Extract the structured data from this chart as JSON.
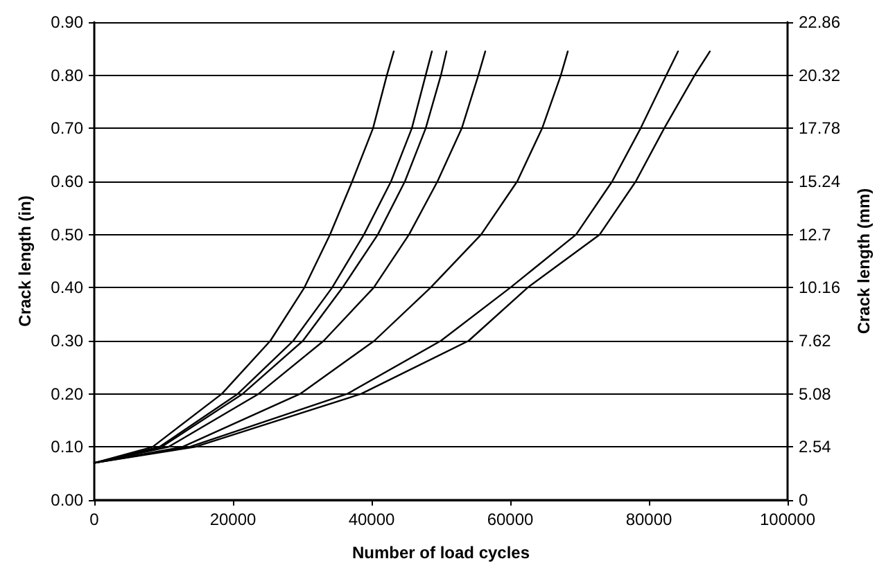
{
  "chart_data": {
    "type": "line",
    "xlabel": "Number of load cycles",
    "ylabel": "Crack length (in)",
    "y2label": "Crack length (mm)",
    "xlim": [
      0,
      100000
    ],
    "xticks": [
      0,
      20000,
      40000,
      60000,
      80000,
      100000
    ],
    "ylim": [
      0,
      0.9
    ],
    "yticks": [
      {
        "value": 0,
        "label": "0.00"
      },
      {
        "value": 0.1,
        "label": "0.10"
      },
      {
        "value": 0.2,
        "label": "0.20"
      },
      {
        "value": 0.3,
        "label": "0.30"
      },
      {
        "value": 0.4,
        "label": "0.40"
      },
      {
        "value": 0.5,
        "label": "0.50"
      },
      {
        "value": 0.6,
        "label": "0.60"
      },
      {
        "value": 0.7,
        "label": "0.70"
      },
      {
        "value": 0.8,
        "label": "0.80"
      },
      {
        "value": 0.9,
        "label": "0.90"
      }
    ],
    "y2lim": [
      0,
      22.86
    ],
    "y2ticks": [
      0,
      2.54,
      5.08,
      7.62,
      10.16,
      12.7,
      15.24,
      17.78,
      20.32,
      22.86
    ],
    "grid": "y",
    "marker": "none",
    "line_style": "solid",
    "series": [
      {
        "color": "#000000",
        "x": [
          0,
          8400,
          18400,
          25400,
          30300,
          34000,
          37200,
          40200,
          42200,
          43200
        ],
        "values": [
          0.07,
          0.1,
          0.2,
          0.3,
          0.4,
          0.5,
          0.6,
          0.7,
          0.8,
          0.845
        ]
      },
      {
        "color": "#000000",
        "x": [
          0,
          9400,
          20700,
          28700,
          34300,
          38900,
          42800,
          45800,
          47800,
          48700
        ],
        "values": [
          0.07,
          0.1,
          0.2,
          0.3,
          0.4,
          0.5,
          0.6,
          0.7,
          0.8,
          0.845
        ]
      },
      {
        "color": "#000000",
        "x": [
          0,
          9700,
          21400,
          30100,
          35800,
          40900,
          44800,
          47800,
          50000,
          50800
        ],
        "values": [
          0.07,
          0.1,
          0.2,
          0.3,
          0.4,
          0.5,
          0.6,
          0.7,
          0.8,
          0.845
        ]
      },
      {
        "color": "#000000",
        "x": [
          0,
          10700,
          23700,
          33100,
          40300,
          45400,
          49500,
          53000,
          55400,
          56400
        ],
        "values": [
          0.07,
          0.1,
          0.2,
          0.3,
          0.4,
          0.5,
          0.6,
          0.7,
          0.8,
          0.845
        ]
      },
      {
        "color": "#000000",
        "x": [
          0,
          12700,
          29700,
          40400,
          48500,
          55800,
          61000,
          64600,
          67300,
          68300
        ],
        "values": [
          0.07,
          0.1,
          0.2,
          0.3,
          0.4,
          0.5,
          0.6,
          0.7,
          0.8,
          0.845
        ]
      },
      {
        "color": "#000000",
        "x": [
          0,
          13700,
          36500,
          50000,
          60000,
          69500,
          74700,
          78800,
          82500,
          84200
        ],
        "values": [
          0.07,
          0.1,
          0.2,
          0.3,
          0.4,
          0.5,
          0.6,
          0.7,
          0.8,
          0.845
        ]
      },
      {
        "color": "#000000",
        "x": [
          0,
          14500,
          38500,
          54000,
          62500,
          72900,
          78100,
          82200,
          86600,
          88800
        ],
        "values": [
          0.07,
          0.1,
          0.2,
          0.3,
          0.4,
          0.5,
          0.6,
          0.7,
          0.8,
          0.845
        ]
      }
    ]
  }
}
